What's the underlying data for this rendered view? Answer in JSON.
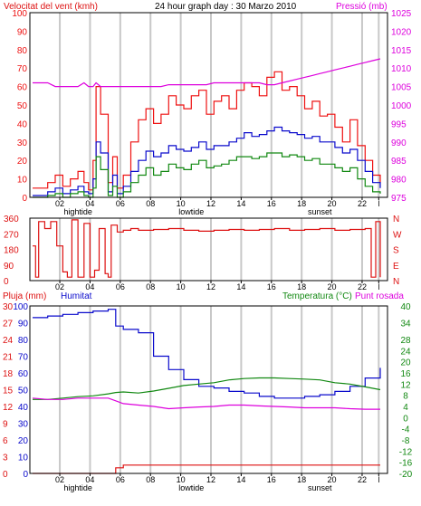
{
  "colors": {
    "wind": "#ee1111",
    "wind_avg": "#0a0acc",
    "wind_low": "#118811",
    "pressure": "#dd00dd",
    "direction": "#dd1111",
    "rain": "#dd1111",
    "humidity": "#0a0acc",
    "temperature": "#118811",
    "dewpoint": "#dd00dd",
    "grid": "#c8c8c8",
    "frame": "#000000"
  },
  "chart_data": [
    {
      "type": "line",
      "title": "24 hour graph day : 30 Marzo 2010",
      "left_axis_label": "Velocitat del vent (kmh)",
      "right_axis_label": "Pressió (mb)",
      "x_ticks": [
        "02",
        "04",
        "06",
        "08",
        "10",
        "12",
        "14",
        "16",
        "18",
        "20",
        "22",
        "l"
      ],
      "x_annotations": [
        "hightide",
        "lowtide",
        "sunset"
      ],
      "ylim": [
        0,
        100
      ],
      "y_ticks": [
        "0",
        "10",
        "20",
        "30",
        "40",
        "50",
        "60",
        "70",
        "80",
        "90",
        "100"
      ],
      "y2lim": [
        975,
        1025
      ],
      "y2_ticks": [
        "975",
        "980",
        "985",
        "990",
        "995",
        "1000",
        "1005",
        "1010",
        "1015",
        "1020",
        "1025"
      ],
      "grid": "vertical",
      "x": [
        0,
        1,
        1.5,
        2,
        2.5,
        3,
        3.4,
        3.7,
        4,
        4.2,
        4.5,
        5,
        5.3,
        5.6,
        6,
        6.5,
        7,
        7.5,
        8,
        8.5,
        9,
        9.5,
        10,
        10.5,
        11,
        11.5,
        12,
        12.5,
        13,
        13.5,
        14,
        14.5,
        15,
        15.5,
        16,
        16.5,
        17,
        17.5,
        18,
        18.5,
        19,
        19.5,
        20,
        20.5,
        21,
        21.5,
        22,
        22.5,
        23
      ],
      "series": [
        {
          "name": "gust",
          "axis": "left",
          "values": [
            5,
            8,
            12,
            6,
            10,
            14,
            8,
            4,
            20,
            60,
            45,
            8,
            22,
            5,
            12,
            30,
            42,
            48,
            40,
            45,
            55,
            50,
            48,
            55,
            58,
            45,
            52,
            55,
            48,
            58,
            62,
            60,
            55,
            65,
            68,
            58,
            60,
            55,
            48,
            52,
            44,
            45,
            38,
            30,
            42,
            28,
            20,
            12,
            8
          ]
        },
        {
          "name": "average",
          "axis": "left",
          "values": [
            1,
            3,
            5,
            2,
            4,
            6,
            3,
            2,
            10,
            30,
            24,
            3,
            12,
            2,
            6,
            14,
            20,
            25,
            22,
            24,
            28,
            26,
            25,
            27,
            30,
            26,
            28,
            28,
            30,
            32,
            35,
            33,
            34,
            36,
            38,
            36,
            35,
            34,
            32,
            33,
            30,
            30,
            27,
            24,
            26,
            20,
            14,
            8,
            5
          ]
        },
        {
          "name": "lull",
          "axis": "left",
          "values": [
            0,
            1,
            2,
            0,
            2,
            3,
            1,
            0,
            5,
            22,
            15,
            1,
            6,
            0,
            3,
            8,
            12,
            16,
            12,
            14,
            18,
            16,
            15,
            18,
            20,
            16,
            17,
            18,
            20,
            22,
            22,
            21,
            22,
            24,
            24,
            22,
            23,
            22,
            20,
            21,
            18,
            18,
            16,
            14,
            16,
            10,
            6,
            3,
            2
          ]
        },
        {
          "name": "pressure",
          "axis": "right",
          "values": [
            1006,
            1006,
            1005,
            1005,
            1005,
            1005,
            1006,
            1005,
            1005,
            1006,
            1005,
            1005,
            1005,
            1005,
            1005,
            1005,
            1005,
            1005,
            1005,
            1005,
            1005.5,
            1005.5,
            1005.5,
            1005.5,
            1005.5,
            1005.5,
            1006,
            1006,
            1006,
            1006,
            1006,
            1006,
            1006,
            1005.5,
            1005.5,
            1006,
            1006.5,
            1007,
            1007.5,
            1008,
            1008.5,
            1009,
            1009.5,
            1010,
            1010.5,
            1011,
            1011.5,
            1012,
            1012.5
          ]
        }
      ]
    },
    {
      "type": "line",
      "x_ticks": [
        "02",
        "04",
        "06",
        "08",
        "10",
        "12",
        "14",
        "16",
        "18",
        "20",
        "22",
        "l"
      ],
      "ylim": [
        0,
        360
      ],
      "y_ticks": [
        "0",
        "90",
        "180",
        "270",
        "360"
      ],
      "compass_labels": [
        "N",
        "W",
        "S",
        "E",
        "N"
      ],
      "grid": "vertical",
      "x": [
        0,
        0.2,
        0.4,
        0.8,
        1.2,
        1.6,
        2,
        2.3,
        2.6,
        3,
        3.4,
        3.8,
        4.1,
        4.4,
        4.8,
        5,
        5.2,
        5.6,
        6,
        6.5,
        7,
        8,
        9,
        10,
        11,
        12,
        13,
        14,
        15,
        16,
        17,
        18,
        19,
        20,
        21,
        22,
        22.4,
        22.7,
        23
      ],
      "series": [
        {
          "name": "direction",
          "values": [
            200,
            20,
            340,
            300,
            340,
            200,
            50,
            20,
            350,
            20,
            330,
            20,
            60,
            300,
            40,
            20,
            320,
            280,
            290,
            300,
            290,
            295,
            300,
            290,
            285,
            290,
            295,
            290,
            295,
            300,
            290,
            295,
            300,
            290,
            295,
            300,
            20,
            340,
            20
          ]
        }
      ]
    },
    {
      "type": "line",
      "left_axis_label": "Pluja (mm)",
      "left_series_label": "Humitat",
      "right_axis_label": "Temperatura (°C)",
      "right_axis_label_2": "Punt rosada",
      "x_ticks": [
        "02",
        "04",
        "06",
        "08",
        "10",
        "12",
        "14",
        "16",
        "18",
        "20",
        "22",
        "l"
      ],
      "x_annotations": [
        "hightide",
        "lowtide",
        "sunset"
      ],
      "ylim": [
        0,
        100
      ],
      "y_ticks": [
        "0",
        "10",
        "20",
        "30",
        "40",
        "50",
        "60",
        "70",
        "80",
        "90",
        "100"
      ],
      "rain_ticks": [
        "0",
        "3",
        "6",
        "9",
        "12",
        "15",
        "18",
        "21",
        "24",
        "27",
        "30"
      ],
      "y2lim": [
        -20,
        40
      ],
      "y2_ticks": [
        "-20",
        "-16",
        "-12",
        "-8",
        "-4",
        "0",
        "4",
        "8",
        "12",
        "16",
        "20",
        "24",
        "28",
        "34",
        "40"
      ],
      "grid": "vertical",
      "x": [
        0,
        1,
        2,
        3,
        4,
        5,
        5.5,
        6,
        7,
        8,
        9,
        10,
        11,
        12,
        13,
        14,
        15,
        16,
        17,
        18,
        19,
        20,
        21,
        22,
        23
      ],
      "series": [
        {
          "name": "humidity",
          "axis": "left",
          "values": [
            93,
            94,
            95,
            96,
            97,
            98,
            88,
            86,
            84,
            70,
            62,
            56,
            52,
            51,
            49,
            48,
            46,
            45,
            45,
            46,
            47,
            49,
            52,
            57,
            63
          ]
        },
        {
          "name": "rain",
          "axis": "rain",
          "values": [
            0,
            0,
            0,
            0,
            0,
            0,
            1,
            1.5,
            1.5,
            1.5,
            1.5,
            1.5,
            1.5,
            1.5,
            1.5,
            1.5,
            1.5,
            1.5,
            1.5,
            1.5,
            1.5,
            1.5,
            1.5,
            1.5,
            1.5
          ]
        },
        {
          "name": "temperature",
          "axis": "right",
          "values": [
            6.5,
            6.5,
            7,
            7.5,
            7.8,
            8.5,
            9,
            9.2,
            8.8,
            9.5,
            10.5,
            11.5,
            12,
            12.5,
            13.5,
            14,
            14.2,
            14.2,
            14,
            13.8,
            13.5,
            12.5,
            12,
            11,
            10
          ]
        },
        {
          "name": "dewpoint",
          "axis": "right",
          "values": [
            7,
            6.5,
            6.5,
            7,
            7,
            7,
            6,
            5,
            4.5,
            4,
            3.2,
            3.5,
            3.8,
            4,
            4.5,
            4.5,
            4.2,
            4,
            3.8,
            3.5,
            3.5,
            3.5,
            3.2,
            3,
            3
          ]
        }
      ]
    }
  ]
}
